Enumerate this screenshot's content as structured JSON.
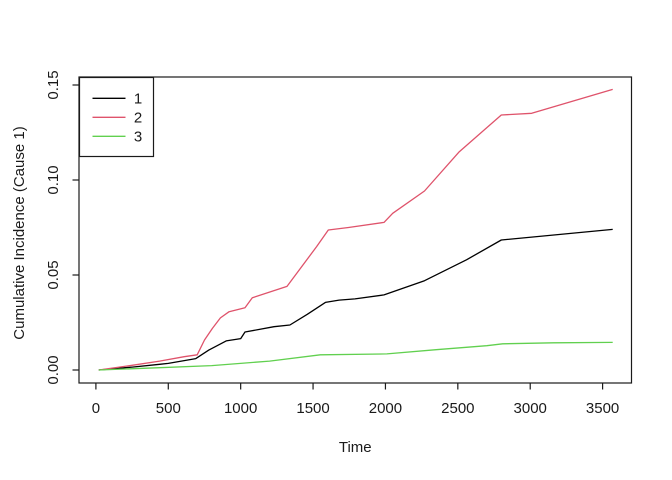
{
  "chart_data": {
    "type": "line",
    "title": "",
    "xlabel": "Time",
    "ylabel": "Cumulative Incidence (Cause 1)",
    "x_ticks": [
      0,
      500,
      1000,
      1500,
      2000,
      2500,
      3000,
      3500
    ],
    "y_ticks": [
      "0.00",
      "0.05",
      "0.10",
      "0.15"
    ],
    "y_tick_values": [
      0,
      0.05,
      0.1,
      0.15
    ],
    "xlim": [
      0,
      3570
    ],
    "ylim": [
      0,
      0.15
    ],
    "grid": "off",
    "legend": {
      "position": "topleft",
      "entries": [
        {
          "label": "1",
          "color": "#000000"
        },
        {
          "label": "2",
          "color": "#DF536B"
        },
        {
          "label": "3",
          "color": "#61D04F"
        }
      ]
    },
    "series": [
      {
        "name": "1",
        "color": "#000000",
        "points": [
          [
            20,
            0.0
          ],
          [
            250,
            0.0015
          ],
          [
            440,
            0.003
          ],
          [
            500,
            0.0035
          ],
          [
            690,
            0.006
          ],
          [
            780,
            0.0105
          ],
          [
            900,
            0.0153
          ],
          [
            1000,
            0.0165
          ],
          [
            1030,
            0.02
          ],
          [
            1230,
            0.0228
          ],
          [
            1340,
            0.0237
          ],
          [
            1460,
            0.0293
          ],
          [
            1585,
            0.0356
          ],
          [
            1680,
            0.0368
          ],
          [
            1790,
            0.0374
          ],
          [
            1990,
            0.0395
          ],
          [
            2270,
            0.047
          ],
          [
            2560,
            0.058
          ],
          [
            2800,
            0.0684
          ],
          [
            3570,
            0.074
          ]
        ]
      },
      {
        "name": "2",
        "color": "#DF536B",
        "points": [
          [
            20,
            0.0
          ],
          [
            250,
            0.0025
          ],
          [
            440,
            0.0047
          ],
          [
            610,
            0.007
          ],
          [
            700,
            0.008
          ],
          [
            750,
            0.0158
          ],
          [
            805,
            0.0219
          ],
          [
            860,
            0.0274
          ],
          [
            920,
            0.0307
          ],
          [
            1030,
            0.0328
          ],
          [
            1080,
            0.038
          ],
          [
            1320,
            0.044
          ],
          [
            1525,
            0.065
          ],
          [
            1605,
            0.0737
          ],
          [
            1745,
            0.075
          ],
          [
            1990,
            0.0777
          ],
          [
            2050,
            0.0825
          ],
          [
            2270,
            0.0942
          ],
          [
            2510,
            0.1149
          ],
          [
            2800,
            0.1342
          ],
          [
            3010,
            0.1351
          ],
          [
            3570,
            0.1477
          ]
        ]
      },
      {
        "name": "3",
        "color": "#61D04F",
        "points": [
          [
            20,
            0.0
          ],
          [
            440,
            0.0012
          ],
          [
            800,
            0.0023
          ],
          [
            1200,
            0.0047
          ],
          [
            1550,
            0.008
          ],
          [
            2010,
            0.0085
          ],
          [
            2350,
            0.0107
          ],
          [
            2700,
            0.0128
          ],
          [
            2810,
            0.0138
          ],
          [
            3160,
            0.0143
          ],
          [
            3570,
            0.0145
          ]
        ]
      }
    ],
    "colors": {
      "frame": "#1a1a1a",
      "background": "#ffffff",
      "text": "#1a1a1a"
    }
  }
}
